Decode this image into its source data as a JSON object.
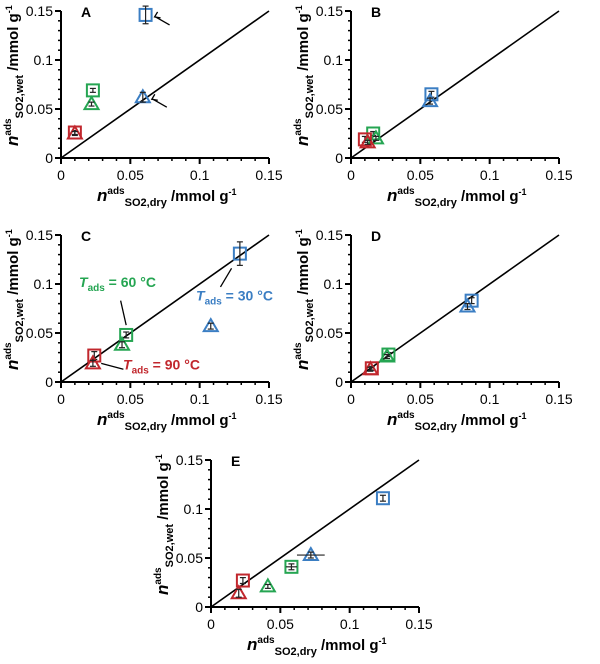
{
  "colors": {
    "30C": "#3b7ec3",
    "60C": "#25a552",
    "90C": "#c1272d",
    "axis": "#000000"
  },
  "axis_text": {
    "n": "n",
    "ads": "ads",
    "wet_sub": "SO2,wet",
    "dry_sub": "SO2,dry",
    "unit": " /mmol g",
    "unit_exp": "-1"
  },
  "chart_data": [
    {
      "type": "scatter",
      "panel": "A",
      "xlim": [
        0,
        0.15
      ],
      "ylim": [
        0,
        0.15
      ],
      "xticks": [
        "0",
        "0.05",
        "0.1",
        "0.15"
      ],
      "yticks": [
        "0",
        "0.05",
        "0.1",
        "0.15"
      ],
      "reference_line": "y = x",
      "points": [
        {
          "temp": "30C",
          "marker": "square",
          "x": 0.061,
          "y": 0.146,
          "yerr": 0.009,
          "arrow": true
        },
        {
          "temp": "30C",
          "marker": "triangle",
          "x": 0.059,
          "y": 0.062,
          "yerr": 0.005,
          "arrow": true
        },
        {
          "temp": "60C",
          "marker": "square",
          "x": 0.023,
          "y": 0.069,
          "yerr": 0.002
        },
        {
          "temp": "60C",
          "marker": "triangle",
          "x": 0.022,
          "y": 0.055,
          "yerr": 0.002
        },
        {
          "temp": "90C",
          "marker": "square",
          "x": 0.01,
          "y": 0.026,
          "yerr": 0.002
        },
        {
          "temp": "90C",
          "marker": "triangle",
          "x": 0.01,
          "y": 0.025,
          "yerr": 0.002
        }
      ]
    },
    {
      "type": "scatter",
      "panel": "B",
      "xlim": [
        0,
        0.15
      ],
      "ylim": [
        0,
        0.15
      ],
      "xticks": [
        "0",
        "0.05",
        "0.1",
        "0.15"
      ],
      "yticks": [
        "0",
        "0.05",
        "0.1",
        "0.15"
      ],
      "reference_line": "y = x",
      "points": [
        {
          "temp": "30C",
          "marker": "square",
          "x": 0.058,
          "y": 0.065,
          "yerr": 0.003
        },
        {
          "temp": "30C",
          "marker": "triangle",
          "x": 0.057,
          "y": 0.058,
          "yerr": 0.003
        },
        {
          "temp": "60C",
          "marker": "square",
          "x": 0.016,
          "y": 0.025,
          "yerr": 0.002
        },
        {
          "temp": "60C",
          "marker": "triangle",
          "x": 0.018,
          "y": 0.02,
          "yerr": 0.002
        },
        {
          "temp": "90C",
          "marker": "square",
          "x": 0.01,
          "y": 0.019,
          "yerr": 0.003
        },
        {
          "temp": "90C",
          "marker": "triangle",
          "x": 0.012,
          "y": 0.016,
          "yerr": 0.002
        }
      ]
    },
    {
      "type": "scatter",
      "panel": "C",
      "xlim": [
        0,
        0.15
      ],
      "ylim": [
        0,
        0.15
      ],
      "xticks": [
        "0",
        "0.05",
        "0.1",
        "0.15"
      ],
      "yticks": [
        "0",
        "0.05",
        "0.1",
        "0.15"
      ],
      "reference_line": "y = x",
      "annotations": [
        {
          "T": "T",
          "sub": "ads",
          "rest": " = 60 °C",
          "temp": "60C"
        },
        {
          "T": "T",
          "sub": "ads",
          "rest": " = 30 °C",
          "temp": "30C"
        },
        {
          "T": "T",
          "sub": "ads",
          "rest": " = 90 °C",
          "temp": "90C"
        }
      ],
      "points": [
        {
          "temp": "30C",
          "marker": "square",
          "x": 0.129,
          "y": 0.131,
          "yerr": 0.012
        },
        {
          "temp": "30C",
          "marker": "triangle",
          "x": 0.108,
          "y": 0.057,
          "yerr": 0.003
        },
        {
          "temp": "60C",
          "marker": "square",
          "x": 0.047,
          "y": 0.048,
          "yerr": 0.003
        },
        {
          "temp": "60C",
          "marker": "triangle",
          "x": 0.044,
          "y": 0.038,
          "yerr": 0.003
        },
        {
          "temp": "90C",
          "marker": "square",
          "x": 0.024,
          "y": 0.027,
          "yerr": 0.004
        },
        {
          "temp": "90C",
          "marker": "triangle",
          "x": 0.023,
          "y": 0.019,
          "yerr": 0.003
        }
      ]
    },
    {
      "type": "scatter",
      "panel": "D",
      "xlim": [
        0,
        0.15
      ],
      "ylim": [
        0,
        0.15
      ],
      "xticks": [
        "0",
        "0.05",
        "0.1",
        "0.15"
      ],
      "yticks": [
        "0",
        "0.05",
        "0.1",
        "0.15"
      ],
      "reference_line": "y = x",
      "points": [
        {
          "temp": "30C",
          "marker": "square",
          "x": 0.087,
          "y": 0.083,
          "yerr": 0.003
        },
        {
          "temp": "30C",
          "marker": "triangle",
          "x": 0.084,
          "y": 0.077,
          "yerr": 0.003
        },
        {
          "temp": "60C",
          "marker": "square",
          "x": 0.027,
          "y": 0.028,
          "yerr": 0.002
        },
        {
          "temp": "60C",
          "marker": "triangle",
          "x": 0.026,
          "y": 0.026,
          "yerr": 0.002
        },
        {
          "temp": "90C",
          "marker": "square",
          "x": 0.015,
          "y": 0.014,
          "yerr": 0.002
        },
        {
          "temp": "90C",
          "marker": "triangle",
          "x": 0.014,
          "y": 0.013,
          "yerr": 0.002
        }
      ]
    },
    {
      "type": "scatter",
      "panel": "E",
      "xlim": [
        0,
        0.15
      ],
      "ylim": [
        0,
        0.15
      ],
      "xticks": [
        "0",
        "0.05",
        "0.1",
        "0.15"
      ],
      "yticks": [
        "0",
        "0.05",
        "0.1",
        "0.15"
      ],
      "reference_line": "y = x",
      "points": [
        {
          "temp": "30C",
          "marker": "square",
          "x": 0.124,
          "y": 0.111,
          "yerr": 0.003
        },
        {
          "temp": "30C",
          "marker": "triangle",
          "x": 0.072,
          "y": 0.053,
          "yerr": 0.003,
          "xerr": 0.01
        },
        {
          "temp": "60C",
          "marker": "square",
          "x": 0.058,
          "y": 0.041,
          "yerr": 0.003,
          "xerr": 0.004
        },
        {
          "temp": "60C",
          "marker": "triangle",
          "x": 0.041,
          "y": 0.021,
          "yerr": 0.002
        },
        {
          "temp": "90C",
          "marker": "square",
          "x": 0.023,
          "y": 0.027,
          "yerr": 0.003
        },
        {
          "temp": "90C",
          "marker": "triangle",
          "x": 0.02,
          "y": 0.014,
          "yerr": 0.004
        }
      ]
    }
  ]
}
